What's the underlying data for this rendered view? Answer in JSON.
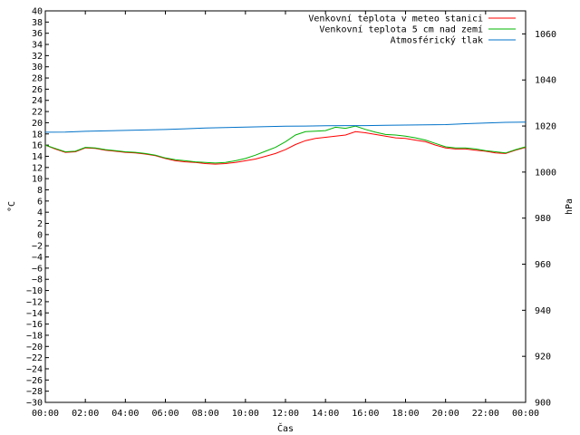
{
  "chart_data": {
    "type": "line",
    "xlabel": "Čas",
    "ylabel": "°C",
    "y2label": "hPa",
    "x_ticks": [
      "00:00",
      "02:00",
      "04:00",
      "06:00",
      "08:00",
      "10:00",
      "12:00",
      "14:00",
      "16:00",
      "18:00",
      "20:00",
      "22:00",
      "00:00"
    ],
    "xlim": [
      0,
      24
    ],
    "ylim": [
      -30,
      40
    ],
    "y_ticks": [
      40,
      38,
      36,
      34,
      32,
      30,
      28,
      26,
      24,
      22,
      20,
      18,
      16,
      14,
      12,
      10,
      8,
      6,
      4,
      2,
      0,
      -2,
      -4,
      -6,
      -8,
      -10,
      -12,
      -14,
      -16,
      -18,
      -20,
      -22,
      -24,
      -26,
      -28,
      -30
    ],
    "y2lim": [
      900,
      1070
    ],
    "y2_ticks": [
      1060,
      1040,
      1020,
      1000,
      980,
      960,
      940,
      920,
      900
    ],
    "grid": false,
    "legend_position": "top-right",
    "series": [
      {
        "name": "Venkovní teplota v meteo stanici",
        "color": "#ff0000",
        "axis": "left",
        "x": [
          0,
          0.5,
          1,
          1.5,
          2,
          2.5,
          3,
          3.5,
          4,
          4.5,
          5,
          5.5,
          6,
          6.5,
          7,
          7.5,
          8,
          8.5,
          9,
          9.5,
          10,
          10.5,
          11,
          11.5,
          12,
          12.5,
          13,
          13.5,
          14,
          14.5,
          15,
          15.5,
          16,
          16.5,
          17,
          17.5,
          18,
          18.5,
          19,
          19.5,
          20,
          20.5,
          21,
          21.5,
          22,
          22.5,
          23,
          23.5,
          24
        ],
        "values": [
          16,
          15.3,
          14.7,
          14.8,
          15.5,
          15.4,
          15.1,
          14.9,
          14.7,
          14.6,
          14.4,
          14.1,
          13.6,
          13.2,
          13,
          12.9,
          12.7,
          12.6,
          12.7,
          12.9,
          13.2,
          13.5,
          14,
          14.5,
          15.2,
          16.1,
          16.8,
          17.2,
          17.4,
          17.6,
          17.8,
          18.4,
          18.2,
          17.9,
          17.6,
          17.3,
          17.2,
          16.9,
          16.6,
          16,
          15.5,
          15.3,
          15.3,
          15.1,
          14.9,
          14.6,
          14.5,
          15.1,
          15.6
        ]
      },
      {
        "name": "Venkovní teplota 5 cm nad zemí",
        "color": "#00b400",
        "axis": "left",
        "x": [
          0,
          0.5,
          1,
          1.5,
          2,
          2.5,
          3,
          3.5,
          4,
          4.5,
          5,
          5.5,
          6,
          6.5,
          7,
          7.5,
          8,
          8.5,
          9,
          9.5,
          10,
          10.5,
          11,
          11.5,
          12,
          12.5,
          13,
          13.5,
          14,
          14.5,
          15,
          15.5,
          16,
          16.5,
          17,
          17.5,
          18,
          18.5,
          19,
          19.5,
          20,
          20.5,
          21,
          21.5,
          22,
          22.5,
          23,
          23.5,
          24
        ],
        "values": [
          16,
          15.4,
          14.8,
          14.9,
          15.6,
          15.5,
          15.2,
          15,
          14.8,
          14.7,
          14.5,
          14.2,
          13.7,
          13.4,
          13.2,
          13,
          12.9,
          12.8,
          12.9,
          13.2,
          13.6,
          14.2,
          14.9,
          15.6,
          16.6,
          17.8,
          18.4,
          18.5,
          18.6,
          19.2,
          19,
          19.4,
          18.8,
          18.3,
          17.9,
          17.8,
          17.6,
          17.3,
          16.9,
          16.3,
          15.7,
          15.5,
          15.5,
          15.3,
          15,
          14.8,
          14.6,
          15.2,
          15.7
        ]
      },
      {
        "name": "Atmosférický tlak",
        "color": "#0072c8",
        "axis": "right",
        "x": [
          0,
          1,
          2,
          3,
          4,
          5,
          6,
          7,
          8,
          9,
          10,
          11,
          12,
          13,
          14,
          15,
          16,
          17,
          18,
          19,
          20,
          21,
          22,
          23,
          24
        ],
        "values": [
          1017.3,
          1017.4,
          1017.7,
          1017.9,
          1018.1,
          1018.3,
          1018.5,
          1018.8,
          1019.1,
          1019.3,
          1019.5,
          1019.7,
          1019.9,
          1020.0,
          1020.1,
          1020.2,
          1020.2,
          1020.3,
          1020.4,
          1020.5,
          1020.6,
          1021.0,
          1021.3,
          1021.6,
          1021.7
        ]
      }
    ]
  }
}
